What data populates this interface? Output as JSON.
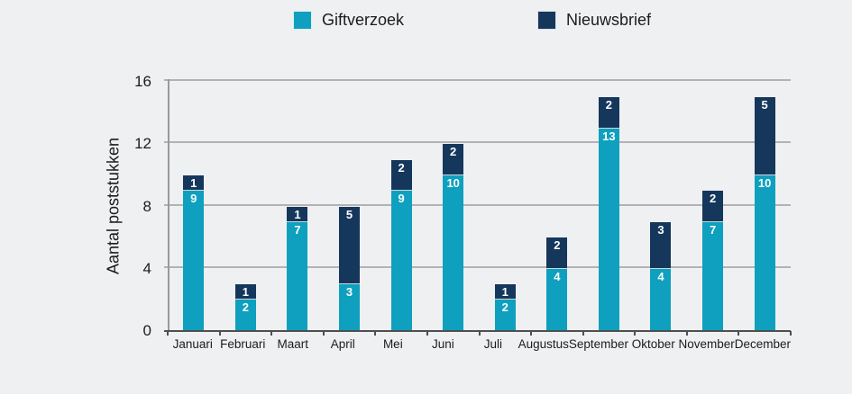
{
  "colors": {
    "background": "#EFF0F1",
    "gridline": "#B2B2B4",
    "axis": "#4F4F4F",
    "text": "#1C1C1C",
    "bar_value_text": "#FFFFFF"
  },
  "chart_data": {
    "type": "bar",
    "stacked": true,
    "title": "",
    "xlabel": "",
    "ylabel": "Aantal poststukken",
    "ylim": [
      0,
      16
    ],
    "yticks": [
      0,
      4,
      8,
      12,
      16
    ],
    "grid": true,
    "legend_position": "top",
    "categories": [
      "Januari",
      "Februari",
      "Maart",
      "April",
      "Mei",
      "Juni",
      "Juli",
      "Augustus",
      "September",
      "Oktober",
      "November",
      "December"
    ],
    "series": [
      {
        "name": "Giftverzoek",
        "color": "#0EA0BE",
        "values": [
          9,
          2,
          7,
          3,
          9,
          10,
          2,
          4,
          13,
          4,
          7,
          10
        ]
      },
      {
        "name": "Nieuwsbrief",
        "color": "#16375C",
        "values": [
          1,
          1,
          1,
          5,
          2,
          2,
          1,
          2,
          2,
          3,
          2,
          5
        ]
      }
    ]
  }
}
